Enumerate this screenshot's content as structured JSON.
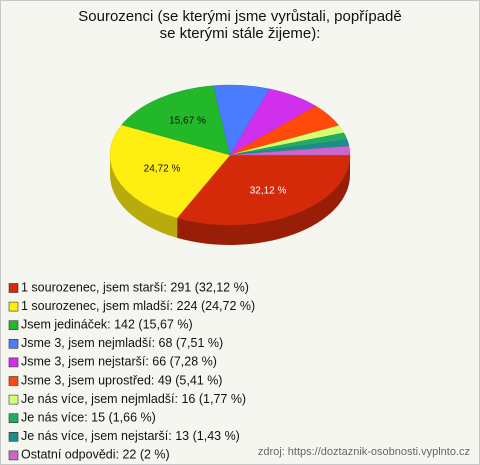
{
  "chart_data": {
    "type": "pie",
    "title": "Sourozenci (se kterými jsme vyrůstali, popřípadě se kterými stále žijeme):",
    "categories": [
      "1 sourozenec, jsem starší: 291 (32,12 %)",
      "1 sourozenec, jsem mladší: 224 (24,72 %)",
      "Jsem jedináček: 142 (15,67 %)",
      "Jsme 3, jsem nejmladší: 68 (7,51 %)",
      "Jsme 3, jsem nejstarší: 66 (7,28 %)",
      "Jsme 3, jsem uprostřed: 49 (5,41 %)",
      "Je nás více, jsem nejmladší: 16 (1,77 %)",
      "Je nás více: 15 (1,66 %)",
      "Je nás více, jsem nejstarší: 13 (1,43 %)",
      "Ostatní odpovědi: 22 (2 %)"
    ],
    "values": [
      32.12,
      24.72,
      15.67,
      7.51,
      7.28,
      5.41,
      1.77,
      1.66,
      1.43,
      2
    ],
    "value_labels": [
      "32,12 %",
      "24,72 %",
      "15,67 %",
      null,
      null,
      null,
      null,
      null,
      null,
      null
    ],
    "colors": [
      "#d42a0a",
      "#ffee11",
      "#22b82a",
      "#4a7cff",
      "#d030ee",
      "#ff4a0a",
      "#d4ff70",
      "#22aa66",
      "#1e8c8c",
      "#cc66cc"
    ],
    "source": "zdroj: https://doztaznik-osobnosti.vyplnto.cz"
  }
}
